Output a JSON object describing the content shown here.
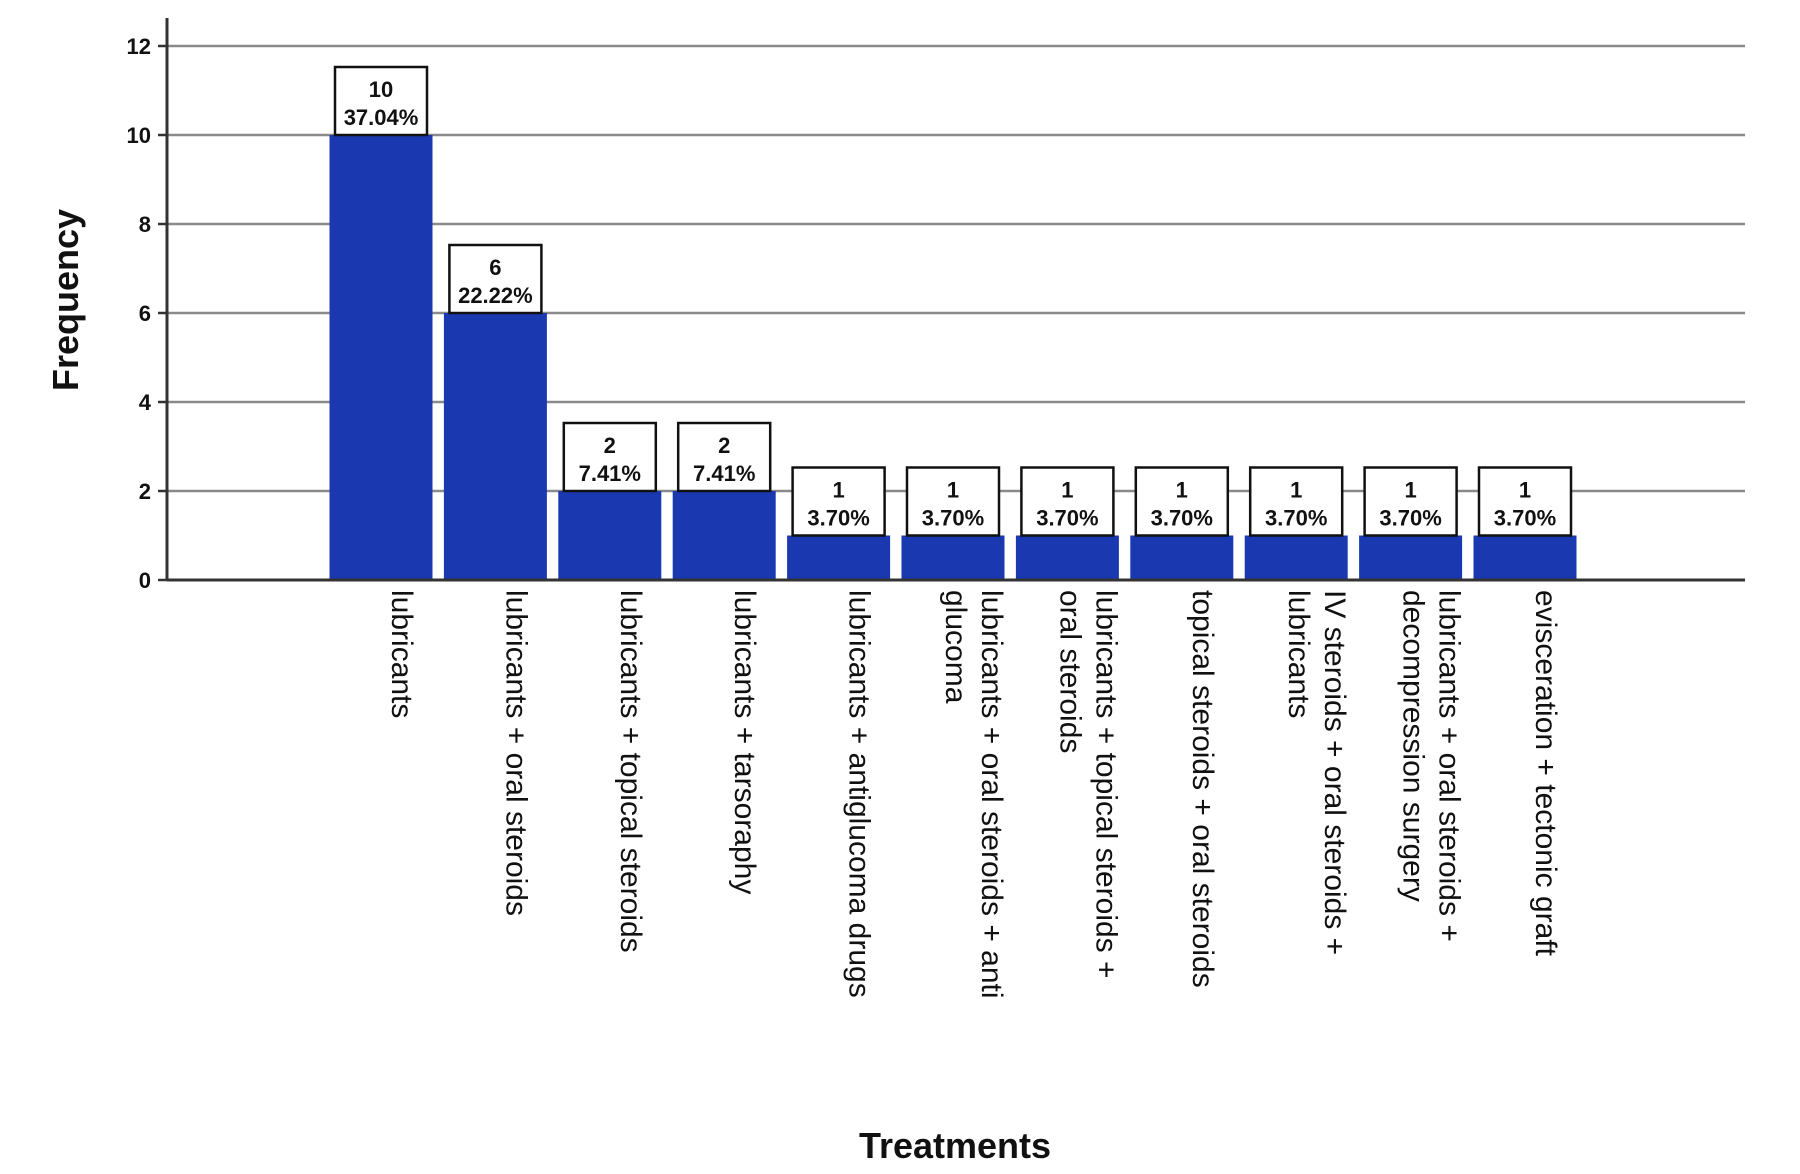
{
  "chart_data": {
    "type": "bar",
    "xlabel": "Treatments",
    "ylabel": "Frequency",
    "ylim": [
      0,
      12
    ],
    "yticks": [
      0,
      2,
      4,
      6,
      8,
      10,
      12
    ],
    "grid": true,
    "bar_color": "#1a38b0",
    "categories": [
      [
        "lubricants"
      ],
      [
        "lubricants + oral steroids"
      ],
      [
        "lubricants + topical steroids"
      ],
      [
        "lubricants + tarsoraphy"
      ],
      [
        "lubricants + antiglucoma drugs"
      ],
      [
        "lubricants + oral steroids + anti",
        "glucoma"
      ],
      [
        "lubricants + topical steroids +",
        "oral steroids"
      ],
      [
        "topical steroids + oral steroids"
      ],
      [
        "IV steroids + oral steroids +",
        "lubricants"
      ],
      [
        "lubricants + oral steroids +",
        "decompression surgery"
      ],
      [
        "evisceration + tectonic graft"
      ]
    ],
    "values": [
      10,
      6,
      2,
      2,
      1,
      1,
      1,
      1,
      1,
      1,
      1
    ],
    "percent_labels": [
      "37.04%",
      "22.22%",
      "7.41%",
      "7.41%",
      "3.70%",
      "3.70%",
      "3.70%",
      "3.70%",
      "3.70%",
      "3.70%",
      "3.70%"
    ]
  }
}
